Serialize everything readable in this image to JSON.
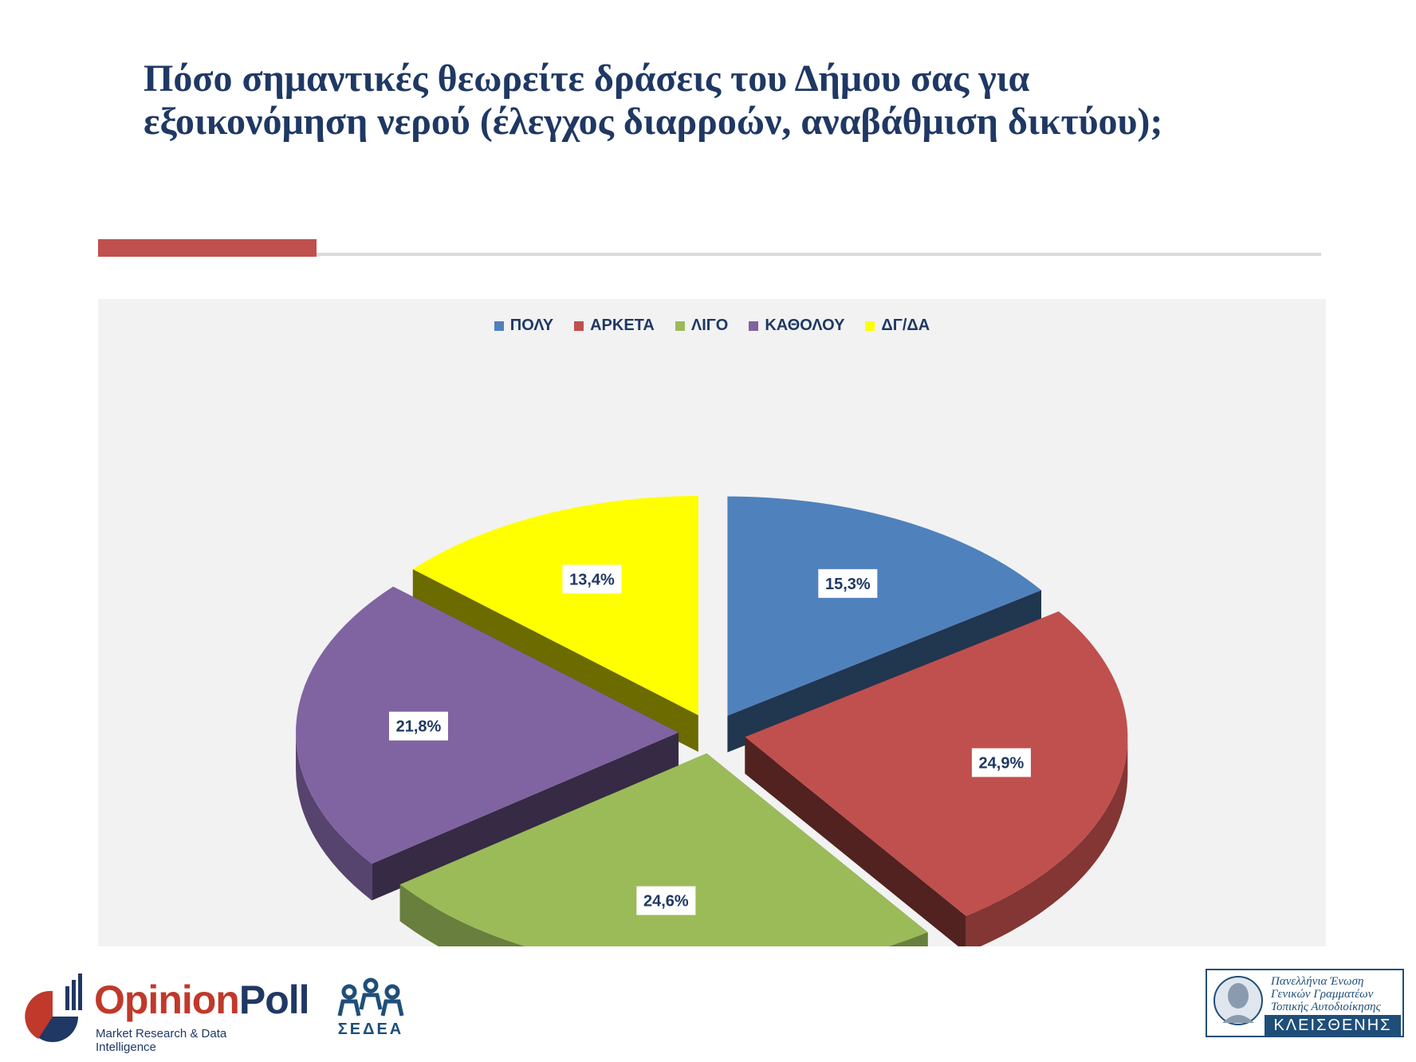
{
  "title": {
    "line1": "Πόσο σημαντικές θεωρείτε δράσεις του Δήμου σας για",
    "line2": "εξοικονόμηση νερού (έλεγχος διαρροών, αναβάθμιση δικτύου);"
  },
  "chart_data": {
    "type": "pie",
    "title": "",
    "categories": [
      "ΠΟΛΥ",
      "ΑΡΚΕΤΑ",
      "ΛΙΓΟ",
      "ΚΑΘΟΛΟΥ",
      "ΔΓ/ΔΑ"
    ],
    "values": [
      15.3,
      24.9,
      24.6,
      21.8,
      13.4
    ],
    "data_labels": [
      "15,3%",
      "24,9%",
      "24,6%",
      "21,8%",
      "13,4%"
    ],
    "colors": [
      "#4f81bd",
      "#c0504d",
      "#9bbb59",
      "#8064a2",
      "#ffff00"
    ],
    "legend_position": "top",
    "exploded": true,
    "three_d": true
  },
  "footer": {
    "opinion_poll": {
      "brand_a": "Opinion",
      "brand_b": "Poll",
      "tagline": "Market Research & Data Intelligence"
    },
    "sedea": {
      "name": "ΣΕΔΕΑ"
    },
    "kleisthenis": {
      "lines": [
        "Πανελλήνια Ένωση",
        "Γενικών Γραμματέων",
        "Τοπικής Αυτοδιοίκησης"
      ],
      "name": "ΚΛΕΙΣΘΕΝΗΣ"
    }
  }
}
